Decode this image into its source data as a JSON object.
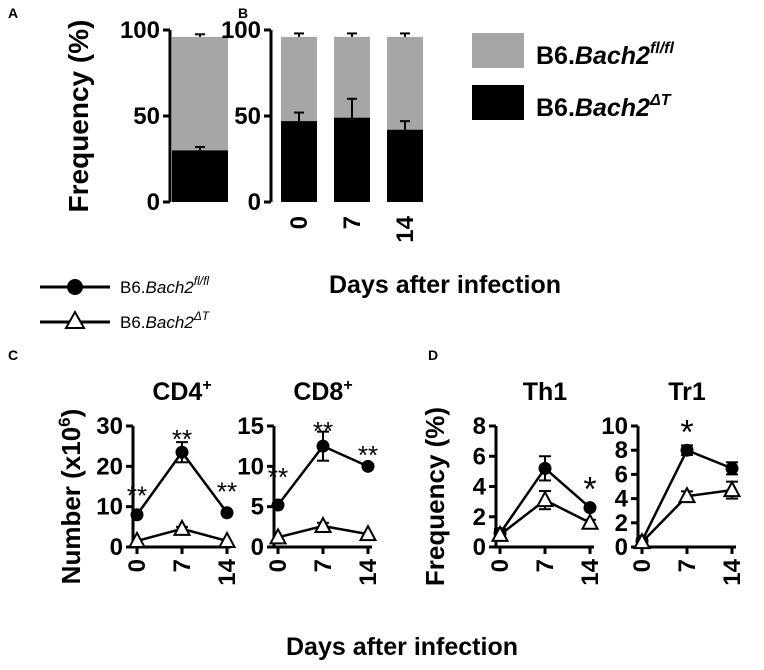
{
  "colors": {
    "gray": "#a6a6a6",
    "black": "#000000",
    "white": "#ffffff"
  },
  "panels": {
    "a": "A",
    "b": "B",
    "c": "C",
    "d": "D"
  },
  "top_legend": {
    "fl": {
      "prefix": "B6.",
      "gene": "Bach2",
      "sup": "fl/fl"
    },
    "dt": {
      "prefix": "B6.",
      "gene": "Bach2",
      "sup": "ΔT"
    }
  },
  "line_legend": {
    "fl": {
      "prefix": "B6.",
      "gene": "Bach2",
      "sup": "fl/fl"
    },
    "dt": {
      "prefix": "B6.",
      "gene": "Bach2",
      "sup": "ΔT"
    }
  },
  "top_xlabel": "Days after infection",
  "bottom_xlabel": "Days after infection",
  "chart_data": [
    {
      "id": "A",
      "type": "bar",
      "stacked": true,
      "ylabel": "Frequency (%)",
      "ylim": [
        0,
        100
      ],
      "yticks": [
        "0",
        "50",
        "100"
      ],
      "categories": [
        ""
      ],
      "series": [
        {
          "name": "B6.Bach2ΔT",
          "values": [
            30
          ],
          "error": [
            2
          ],
          "color": "#000000"
        },
        {
          "name": "B6.Bach2fl/fl",
          "values": [
            66
          ],
          "error": [
            1.5
          ],
          "color": "#a6a6a6"
        }
      ]
    },
    {
      "id": "B",
      "type": "bar",
      "stacked": true,
      "ylim": [
        0,
        100
      ],
      "yticks": [
        "0",
        "50",
        "100"
      ],
      "categories": [
        "0",
        "7",
        "14"
      ],
      "series": [
        {
          "name": "B6.Bach2ΔT",
          "values": [
            47,
            49,
            42
          ],
          "error": [
            5,
            11,
            5
          ],
          "color": "#000000"
        },
        {
          "name": "B6.Bach2fl/fl",
          "values": [
            49,
            47,
            54
          ],
          "error": [
            2,
            2,
            2
          ],
          "color": "#a6a6a6"
        }
      ]
    },
    {
      "id": "C1",
      "type": "line",
      "title": "CD4",
      "title_sup": "+",
      "ylabel": "Number (x10",
      "ylabel_sup": "6",
      "ylabel_end": ")",
      "ylim": [
        0,
        30
      ],
      "yticks": [
        "0",
        "10",
        "20",
        "30"
      ],
      "x": [
        0,
        7,
        14
      ],
      "xticks": [
        "0",
        "7",
        "14"
      ],
      "series": [
        {
          "name": "B6.Bach2fl/fl",
          "marker": "circle",
          "values": [
            8,
            23.5,
            8.5
          ],
          "error": [
            0,
            2.5,
            0
          ]
        },
        {
          "name": "B6.Bach2ΔT",
          "marker": "triangle",
          "values": [
            1.5,
            4.5,
            1.5
          ],
          "error": [
            0,
            0.5,
            0
          ]
        }
      ],
      "annotations": [
        {
          "text": "**",
          "x": 0,
          "y": 14
        },
        {
          "text": "**",
          "x": 7,
          "y": 28
        },
        {
          "text": "**",
          "x": 14,
          "y": 15
        }
      ]
    },
    {
      "id": "C2",
      "type": "line",
      "title": "CD8",
      "title_sup": "+",
      "ylim": [
        0,
        15
      ],
      "yticks": [
        "0",
        "5",
        "10",
        "15"
      ],
      "x": [
        0,
        7,
        14
      ],
      "xticks": [
        "0",
        "7",
        "14"
      ],
      "series": [
        {
          "name": "B6.Bach2fl/fl",
          "marker": "circle",
          "values": [
            5.2,
            12.5,
            10
          ],
          "error": [
            0,
            1.8,
            0
          ]
        },
        {
          "name": "B6.Bach2ΔT",
          "marker": "triangle",
          "values": [
            1.2,
            2.6,
            1.6
          ],
          "error": [
            0,
            0.4,
            0
          ]
        }
      ],
      "annotations": [
        {
          "text": "**",
          "x": 0,
          "y": 9.3
        },
        {
          "text": "**",
          "x": 7,
          "y": 15
        },
        {
          "text": "**",
          "x": 14,
          "y": 12
        }
      ]
    },
    {
      "id": "D1",
      "type": "line",
      "title": "Th1",
      "ylabel": "Frequency (%)",
      "ylim": [
        0,
        8
      ],
      "yticks": [
        "0",
        "2",
        "4",
        "6",
        "8"
      ],
      "x": [
        0,
        7,
        14
      ],
      "xticks": [
        "0",
        "7",
        "14"
      ],
      "series": [
        {
          "name": "B6.Bach2fl/fl",
          "marker": "circle",
          "values": [
            0.9,
            5.2,
            2.6
          ],
          "error": [
            0.3,
            0.8,
            0.1
          ]
        },
        {
          "name": "B6.Bach2ΔT",
          "marker": "triangle",
          "values": [
            0.8,
            3.1,
            1.6
          ],
          "error": [
            0.3,
            0.6,
            0.2
          ]
        }
      ],
      "annotations": [
        {
          "text": "*",
          "x": 14,
          "y": 4
        }
      ]
    },
    {
      "id": "D2",
      "type": "line",
      "title": "Tr1",
      "ylim": [
        0,
        10
      ],
      "yticks": [
        "0",
        "2",
        "4",
        "6",
        "8",
        "10"
      ],
      "x": [
        0,
        7,
        14
      ],
      "xticks": [
        "0",
        "7",
        "14"
      ],
      "series": [
        {
          "name": "B6.Bach2fl/fl",
          "marker": "circle",
          "values": [
            0.5,
            8,
            6.5
          ],
          "error": [
            0.2,
            0.4,
            0.5
          ]
        },
        {
          "name": "B6.Bach2ΔT",
          "marker": "triangle",
          "values": [
            0.4,
            4.2,
            4.7
          ],
          "error": [
            0.2,
            0.4,
            0.7
          ]
        }
      ],
      "annotations": [
        {
          "text": "*",
          "x": 7,
          "y": 9.7
        }
      ]
    }
  ]
}
